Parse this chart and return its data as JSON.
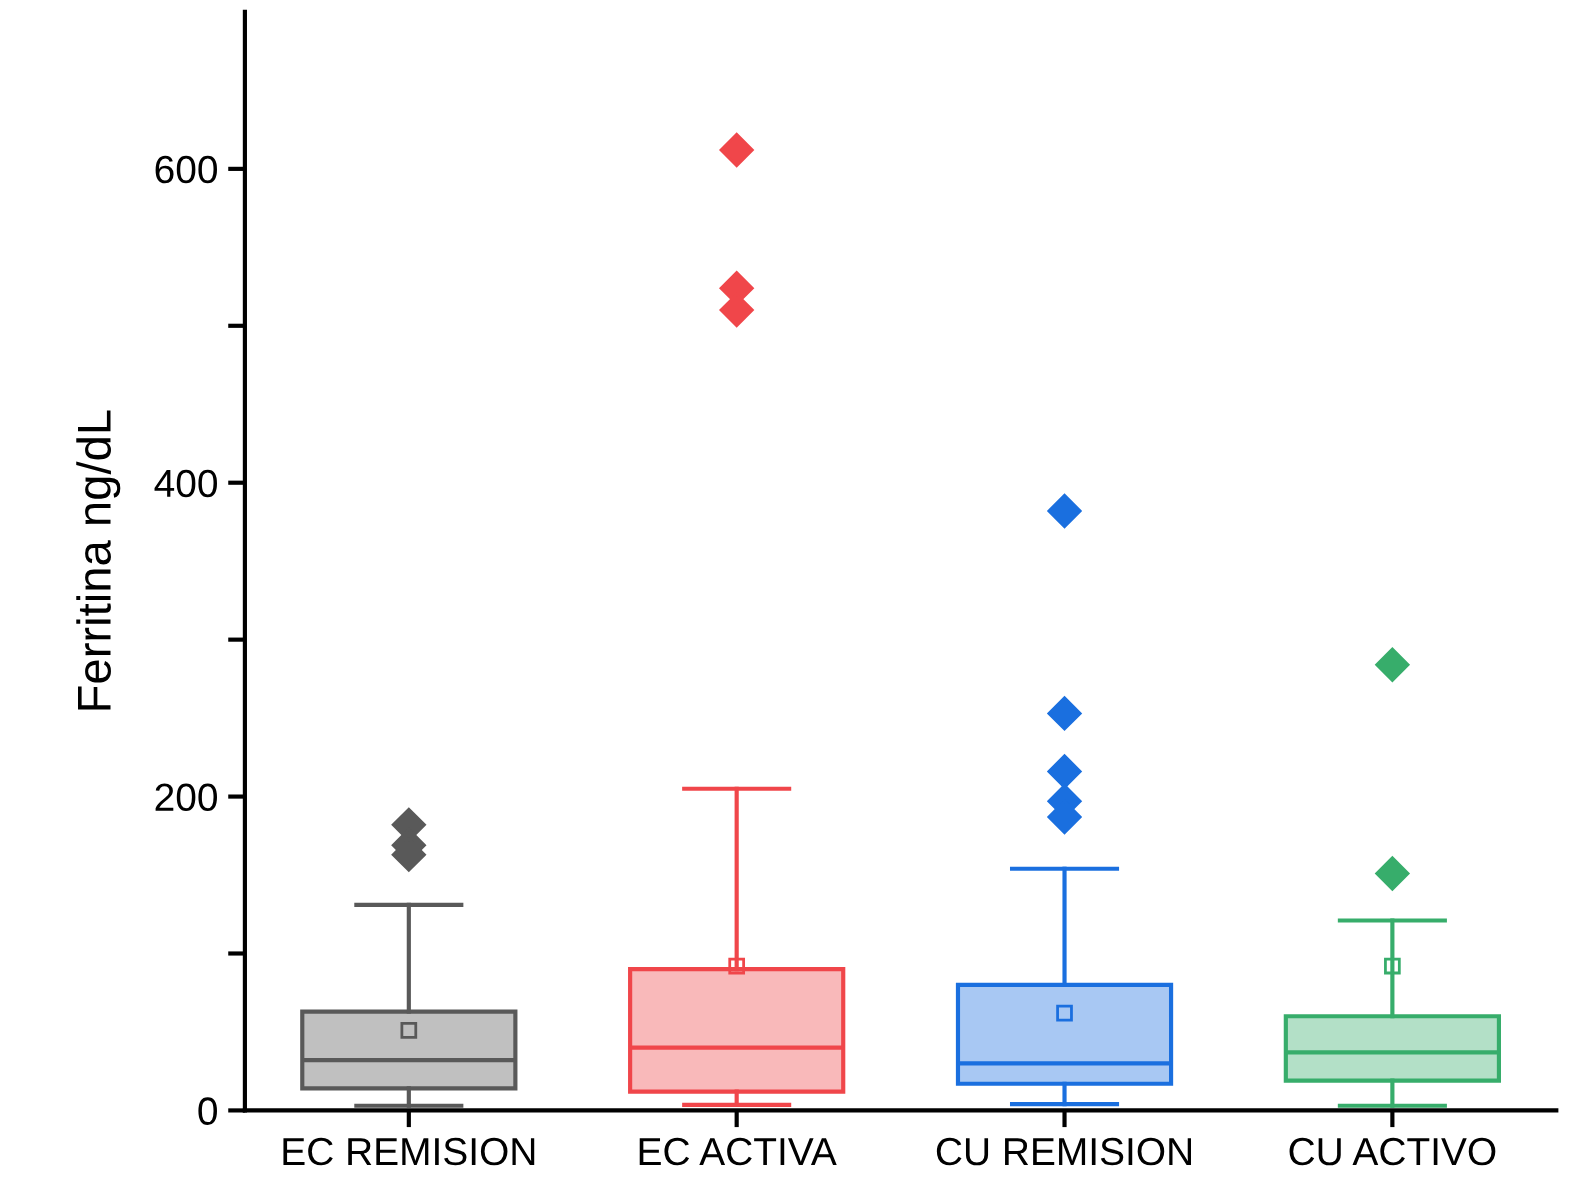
{
  "chart_data": {
    "type": "box",
    "ylabel": "Ferritina ng/dL",
    "categories": [
      "EC REMISION",
      "EC ACTIVA",
      "CU REMISION",
      "CU ACTIVO"
    ],
    "colors": [
      "#595959",
      "#f0464a",
      "#1a6fdf",
      "#37ad6b"
    ],
    "boxes": [
      {
        "low": 3,
        "q1": 14,
        "median": 32,
        "q3": 63,
        "high": 131,
        "mean": 51,
        "outliers": [
          182,
          169,
          163
        ]
      },
      {
        "low": 3.5,
        "q1": 12,
        "median": 40,
        "q3": 90,
        "high": 205,
        "mean": 92,
        "outliers": [
          612,
          524,
          510
        ]
      },
      {
        "low": 4,
        "q1": 17,
        "median": 30,
        "q3": 80,
        "high": 154,
        "mean": 62,
        "outliers": [
          382,
          253,
          216,
          197,
          187
        ]
      },
      {
        "low": 3,
        "q1": 19,
        "median": 37,
        "q3": 60,
        "high": 121,
        "mean": 92,
        "outliers": [
          284,
          151
        ]
      }
    ],
    "ylim": [
      0,
      700
    ],
    "yticks": [
      0,
      {
        "value": 100,
        "label": null
      },
      200,
      {
        "value": 300,
        "label": null
      },
      400,
      {
        "value": 500,
        "label": null
      },
      600
    ],
    "grid": false,
    "legend": false,
    "marker": "diamond"
  }
}
